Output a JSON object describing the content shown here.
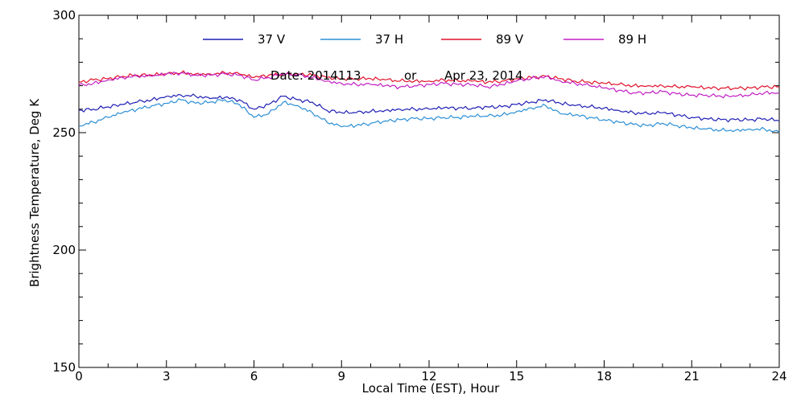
{
  "chart_data": {
    "type": "line",
    "title": "",
    "annotation": {
      "date_label": "Date: 2014113",
      "or_label": "or",
      "date_text": "Apr 23, 2014"
    },
    "xlabel": "Local Time (EST), Hour",
    "ylabel": "Brightness Temperature, Deg K",
    "xlim": [
      0,
      24
    ],
    "ylim": [
      150,
      300
    ],
    "x_ticks": [
      "0",
      "3",
      "6",
      "9",
      "12",
      "15",
      "18",
      "21",
      "24"
    ],
    "y_ticks": [
      "150",
      "200",
      "250",
      "300"
    ],
    "grid": false,
    "legend_position": "top",
    "x": [
      0,
      0.5,
      1,
      1.5,
      2,
      2.5,
      3,
      3.5,
      4,
      4.5,
      5,
      5.5,
      6,
      6.5,
      7,
      7.5,
      8,
      8.5,
      9,
      9.5,
      10,
      10.5,
      11,
      11.5,
      12,
      12.5,
      13,
      13.5,
      14,
      14.5,
      15,
      15.5,
      16,
      16.5,
      17,
      17.5,
      18,
      18.5,
      19,
      19.5,
      20,
      20.5,
      21,
      21.5,
      22,
      22.5,
      23,
      23.5,
      24
    ],
    "series": [
      {
        "name": "37 V",
        "color": "#1f1fb4",
        "values": [
          259.5,
          260,
          261,
          262,
          263,
          264,
          265.5,
          266,
          265.5,
          264.5,
          265,
          264,
          260,
          262,
          265.5,
          264,
          263,
          259.5,
          258.5,
          258.5,
          259,
          259.5,
          260,
          260,
          260,
          260.5,
          260.5,
          260.5,
          261,
          261,
          262,
          263,
          264,
          262.5,
          261.5,
          261,
          260.5,
          259.5,
          258.5,
          258,
          258.5,
          257.5,
          256.5,
          256,
          255.5,
          255.5,
          255.5,
          256,
          255
        ]
      },
      {
        "name": "37 H",
        "color": "#2b8fd6",
        "values": [
          253,
          254.5,
          256.5,
          258.5,
          260,
          261.5,
          262.5,
          264,
          262.5,
          263,
          264,
          262,
          256.5,
          258,
          263,
          261.5,
          258.5,
          254.5,
          252.5,
          253,
          254,
          255,
          255.5,
          256,
          256,
          256.5,
          256.5,
          257,
          257,
          257.5,
          259,
          260.5,
          261.5,
          258,
          257.5,
          256.5,
          255.5,
          254.5,
          253.5,
          253,
          254,
          253,
          252,
          251.5,
          251,
          251,
          251.5,
          251.5,
          250
        ]
      },
      {
        "name": "89 V",
        "color": "#e0102a",
        "values": [
          271.5,
          272.5,
          273,
          274,
          274.5,
          274.5,
          275,
          275.5,
          275,
          275,
          275.5,
          275,
          273.5,
          274.5,
          275,
          275,
          274.5,
          273.5,
          273,
          273,
          273,
          272.5,
          272,
          272,
          272,
          272.5,
          272,
          272,
          271.5,
          272,
          273,
          273.5,
          274,
          273,
          272,
          271.5,
          271,
          270.5,
          270,
          270,
          270,
          269.5,
          269.5,
          269,
          269,
          269,
          269,
          269.5,
          269.5
        ]
      },
      {
        "name": "89 H",
        "color": "#c21fc4",
        "values": [
          270,
          271,
          272.5,
          273.5,
          274,
          274,
          275,
          275.5,
          274.5,
          274.5,
          275,
          274.5,
          272.5,
          273.5,
          275,
          274.5,
          273.5,
          272,
          271,
          270.5,
          270.5,
          270,
          269.5,
          270,
          270.5,
          271,
          270.5,
          270.5,
          269.5,
          270.5,
          272,
          273,
          274,
          272,
          271,
          270,
          269,
          268,
          267,
          267,
          267.5,
          266.5,
          266,
          266,
          265.5,
          265.5,
          266,
          267,
          267
        ]
      }
    ]
  }
}
